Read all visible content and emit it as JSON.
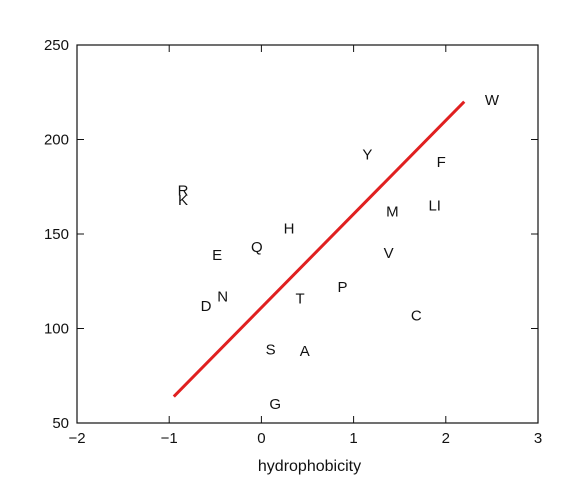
{
  "chart_data": {
    "type": "scatter",
    "title": "",
    "xlabel": "hydrophobicity",
    "ylabel": "",
    "xlim": [
      -2,
      3
    ],
    "ylim": [
      50,
      250
    ],
    "xticks": [
      -2,
      -1,
      0,
      1,
      2,
      3
    ],
    "yticks": [
      50,
      100,
      150,
      200,
      250
    ],
    "xtick_labels": [
      "−2",
      "−1",
      "0",
      "1",
      "2",
      "3"
    ],
    "ytick_labels": [
      "50",
      "100",
      "150",
      "200",
      "250"
    ],
    "grid": false,
    "legend": "none",
    "fit_line": {
      "x": [
        -0.95,
        2.2
      ],
      "y": [
        64,
        220
      ],
      "color": "#e02020"
    },
    "points": [
      {
        "label": "W",
        "x": 2.5,
        "y": 221
      },
      {
        "label": "Y",
        "x": 1.15,
        "y": 192
      },
      {
        "label": "F",
        "x": 1.95,
        "y": 188
      },
      {
        "label": "R",
        "x": -0.85,
        "y": 173
      },
      {
        "label": "K",
        "x": -0.85,
        "y": 168
      },
      {
        "label": "LI",
        "x": 1.88,
        "y": 165
      },
      {
        "label": "M",
        "x": 1.42,
        "y": 162
      },
      {
        "label": "H",
        "x": 0.3,
        "y": 153
      },
      {
        "label": "Q",
        "x": -0.05,
        "y": 143
      },
      {
        "label": "E",
        "x": -0.48,
        "y": 139
      },
      {
        "label": "V",
        "x": 1.38,
        "y": 140
      },
      {
        "label": "P",
        "x": 0.88,
        "y": 122
      },
      {
        "label": "T",
        "x": 0.42,
        "y": 116
      },
      {
        "label": "N",
        "x": -0.42,
        "y": 117
      },
      {
        "label": "D",
        "x": -0.6,
        "y": 112
      },
      {
        "label": "C",
        "x": 1.68,
        "y": 107
      },
      {
        "label": "S",
        "x": 0.1,
        "y": 89
      },
      {
        "label": "A",
        "x": 0.47,
        "y": 88
      },
      {
        "label": "G",
        "x": 0.15,
        "y": 60
      }
    ]
  }
}
